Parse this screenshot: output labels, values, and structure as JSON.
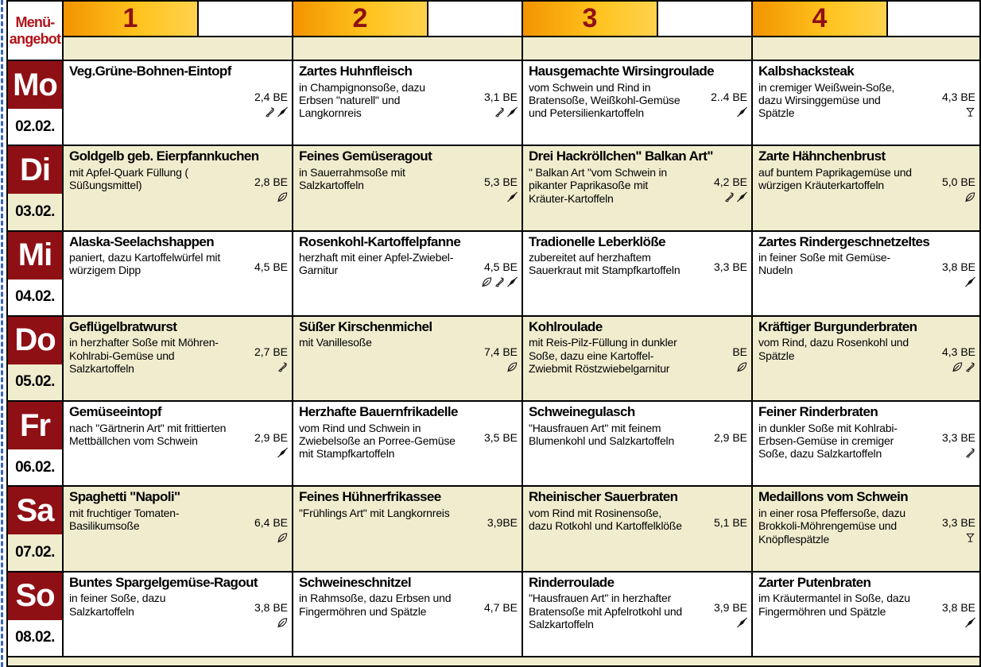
{
  "header": {
    "title_line1": "Menü-",
    "title_line2": "angebot",
    "columns": [
      "1",
      "2",
      "3",
      "4"
    ]
  },
  "colors": {
    "day_red": "#8e1015",
    "title_red": "#b01218",
    "gold_start": "#f29400",
    "gold_end": "#ffd24d",
    "row_cream": "#f0edcf",
    "margin_blue": "#3565c0"
  },
  "be_unit": "BE",
  "days": [
    {
      "abbr": "Mo",
      "date": "02.02.",
      "meals": [
        {
          "title": "Veg.Grüne-Bohnen-Eintopf",
          "desc": "",
          "be": "2,4 BE",
          "icons": [
            "slashed-drumstick-icon",
            "slashed-fish-icon"
          ]
        },
        {
          "title": "Zartes Huhnfleisch",
          "desc": "in Champignonsoße, dazu Erbsen \"naturell\" und Langkornreis",
          "be": "3,1 BE",
          "icons": [
            "slashed-drumstick-icon",
            "slashed-fish-icon"
          ]
        },
        {
          "title": "Hausgemachte Wirsingroulade",
          "desc": "vom Schwein und Rind in Bratensoße, Weißkohl-Gemüse und Petersilienkartoffeln",
          "be": "2..4 BE",
          "icons": [
            "slashed-fish-icon"
          ]
        },
        {
          "title": "Kalbshacksteak",
          "desc": "in cremiger Weißwein-Soße, dazu Wirsinggemüse und Spätzle",
          "be": "4,3 BE",
          "icons": [
            "wine-glass-icon"
          ]
        }
      ]
    },
    {
      "abbr": "Di",
      "date": "03.02.",
      "meals": [
        {
          "title": "Goldgelb geb. Eierpfannkuchen",
          "desc": "mit Apfel-Quark Füllung ( Süßungsmittel)",
          "be": "2,8 BE",
          "icons": [
            "leaf-icon"
          ]
        },
        {
          "title": "Feines Gemüseragout",
          "desc": "in Sauerrahmsoße mit Salzkartoffeln",
          "be": "5,3 BE",
          "icons": [
            "slashed-fish-icon"
          ]
        },
        {
          "title": "Drei Hackröllchen\" Balkan Art\"",
          "desc": "\" Balkan Art \"vom Schwein in pikanter Paprikasoße mit Kräuter-Kartoffeln",
          "be": "4,2 BE",
          "icons": [
            "slashed-drumstick-icon",
            "slashed-fish-icon"
          ]
        },
        {
          "title": "Zarte Hähnchenbrust",
          "desc": "auf buntem Paprikagemüse und würzigen Kräuterkartoffeln",
          "be": "5,0 BE",
          "icons": [
            "leaf-icon"
          ]
        }
      ]
    },
    {
      "abbr": "Mi",
      "date": "04.02.",
      "meals": [
        {
          "title": "Alaska-Seelachshappen",
          "desc": "paniert, dazu Kartoffelwürfel mit würzigem Dipp",
          "be": "4,5 BE",
          "icons": []
        },
        {
          "title": "Rosenkohl-Kartoffelpfanne",
          "desc": "herzhaft mit einer Apfel-Zwiebel-Garnitur",
          "be": "4,5 BE",
          "icons": [
            "leaf-icon",
            "slashed-drumstick-icon",
            "slashed-fish-icon"
          ]
        },
        {
          "title": "Tradionelle Leberklöße",
          "desc": "zubereitet auf herzhaftem Sauerkraut mit Stampfkartoffeln",
          "be": "3,3 BE",
          "icons": []
        },
        {
          "title": "Zartes Rindergeschnetzeltes",
          "desc": "in feiner Soße mit Gemüse-Nudeln",
          "be": "3,8 BE",
          "icons": [
            "slashed-fish-icon"
          ]
        }
      ]
    },
    {
      "abbr": "Do",
      "date": "05.02.",
      "meals": [
        {
          "title": "Geflügelbratwurst",
          "desc": "in herzhafter Soße mit Möhren-Kohlrabi-Gemüse und Salzkartoffeln",
          "be": "2,7 BE",
          "icons": [
            "slashed-drumstick-icon"
          ]
        },
        {
          "title": "Süßer Kirschenmichel",
          "desc": "mit Vanillesoße",
          "be": "7,4 BE",
          "icons": [
            "leaf-icon"
          ]
        },
        {
          "title": "Kohlroulade",
          "desc": "mit Reis-Pilz-Füllung in dunkler Soße, dazu eine Kartoffel-Zwiebmit Röstzwiebelgarnitur",
          "be": "BE",
          "icons": [
            "leaf-icon"
          ]
        },
        {
          "title": "Kräftiger Burgunderbraten",
          "desc": "vom Rind, dazu Rosenkohl und Spätzle",
          "be": "4,3 BE",
          "icons": [
            "leaf-icon",
            "slashed-drumstick-icon"
          ]
        }
      ]
    },
    {
      "abbr": "Fr",
      "date": "06.02.",
      "meals": [
        {
          "title": "Gemüseeintopf",
          "desc": "nach \"Gärtnerin Art\" mit frittierten Mettbällchen vom Schwein",
          "be": "2,9 BE",
          "icons": [
            "slashed-fish-icon"
          ]
        },
        {
          "title": "Herzhafte Bauernfrikadelle",
          "desc": "vom Rind und Schwein in Zwiebelsoße an Porree-Gemüse mit Stampfkartoffeln",
          "be": "3,5 BE",
          "icons": []
        },
        {
          "title": "Schweinegulasch",
          "desc": "\"Hausfrauen Art\" mit feinem Blumenkohl und Salzkartoffeln",
          "be": "2,9 BE",
          "icons": []
        },
        {
          "title": "Feiner Rinderbraten",
          "desc": "in dunkler Soße mit Kohlrabi-Erbsen-Gemüse in cremiger Soße, dazu Salzkartoffeln",
          "be": "3,3 BE",
          "icons": [
            "slashed-drumstick-icon"
          ]
        }
      ]
    },
    {
      "abbr": "Sa",
      "date": "07.02.",
      "meals": [
        {
          "title": "Spaghetti \"Napoli\"",
          "desc": "mit fruchtiger Tomaten-Basilikumsoße",
          "be": "6,4 BE",
          "icons": [
            "leaf-icon"
          ]
        },
        {
          "title": "Feines Hühnerfrikassee",
          "desc": "\"Frühlings Art\" mit Langkornreis",
          "be": "3,9BE",
          "icons": []
        },
        {
          "title": "Rheinischer Sauerbraten",
          "desc": "vom Rind mit Rosinensoße, dazu Rotkohl und Kartoffelklöße",
          "be": "5,1 BE",
          "icons": []
        },
        {
          "title": "Medaillons vom Schwein",
          "desc": "in einer rosa Pfeffersoße, dazu Brokkoli-Möhrengemüse und Knöpflespätzle",
          "be": "3,3 BE",
          "icons": [
            "wine-glass-icon"
          ]
        }
      ]
    },
    {
      "abbr": "So",
      "date": "08.02.",
      "meals": [
        {
          "title": "Buntes Spargelgemüse-Ragout",
          "desc": "in feiner Soße, dazu Salzkartoffeln",
          "be": "3,8 BE",
          "icons": [
            "leaf-icon"
          ]
        },
        {
          "title": "Schweineschnitzel",
          "desc": "in Rahmsoße, dazu Erbsen und Fingermöhren und Spätzle",
          "be": "4,7 BE",
          "icons": []
        },
        {
          "title": "Rinderroulade",
          "desc": "\"Hausfrauen Art\" in herzhafter Bratensoße mit Apfelrotkohl und Salzkartoffeln",
          "be": "3,9 BE",
          "icons": [
            "slashed-fish-icon"
          ]
        },
        {
          "title": "Zarter Putenbraten",
          "desc": "im Kräutermantel in Soße, dazu Fingermöhren und Spätzle",
          "be": "3,8 BE",
          "icons": [
            "slashed-fish-icon"
          ]
        }
      ]
    }
  ]
}
